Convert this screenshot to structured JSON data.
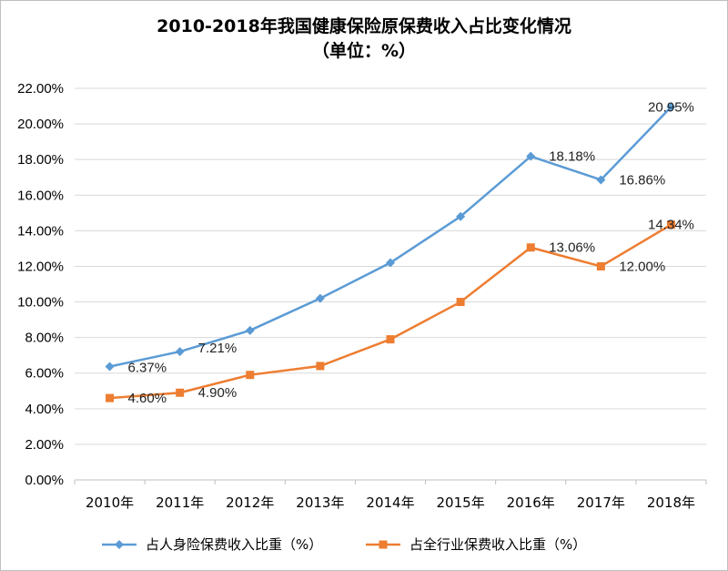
{
  "chart_data": {
    "type": "line",
    "title": "2010-2018年我国健康保险原保费收入占比变化情况",
    "subtitle": "（单位：%）",
    "categories": [
      "2010年",
      "2011年",
      "2012年",
      "2013年",
      "2014年",
      "2015年",
      "2016年",
      "2017年",
      "2018年"
    ],
    "y_ticks": [
      "0.00%",
      "2.00%",
      "4.00%",
      "6.00%",
      "8.00%",
      "10.00%",
      "12.00%",
      "14.00%",
      "16.00%",
      "18.00%",
      "20.00%",
      "22.00%"
    ],
    "ylim": [
      0,
      22
    ],
    "grid": true,
    "legend_position": "bottom",
    "series": [
      {
        "name": "占人身险保费收入比重（%）",
        "color": "#5b9bd5",
        "marker": "diamond",
        "values": [
          6.37,
          7.21,
          8.4,
          10.2,
          12.2,
          14.8,
          18.18,
          16.86,
          20.95
        ],
        "labels": [
          "6.37%",
          "7.21%",
          "",
          "",
          "",
          "",
          "18.18%",
          "16.86%",
          "20.95%"
        ]
      },
      {
        "name": "占全行业保费收入比重（%）",
        "color": "#ed7d31",
        "marker": "square",
        "values": [
          4.6,
          4.9,
          5.9,
          6.4,
          7.9,
          10.0,
          13.06,
          12.0,
          14.34
        ],
        "labels": [
          "4.60%",
          "4.90%",
          "",
          "",
          "",
          "",
          "13.06%",
          "12.00%",
          "14.34%"
        ]
      }
    ]
  }
}
